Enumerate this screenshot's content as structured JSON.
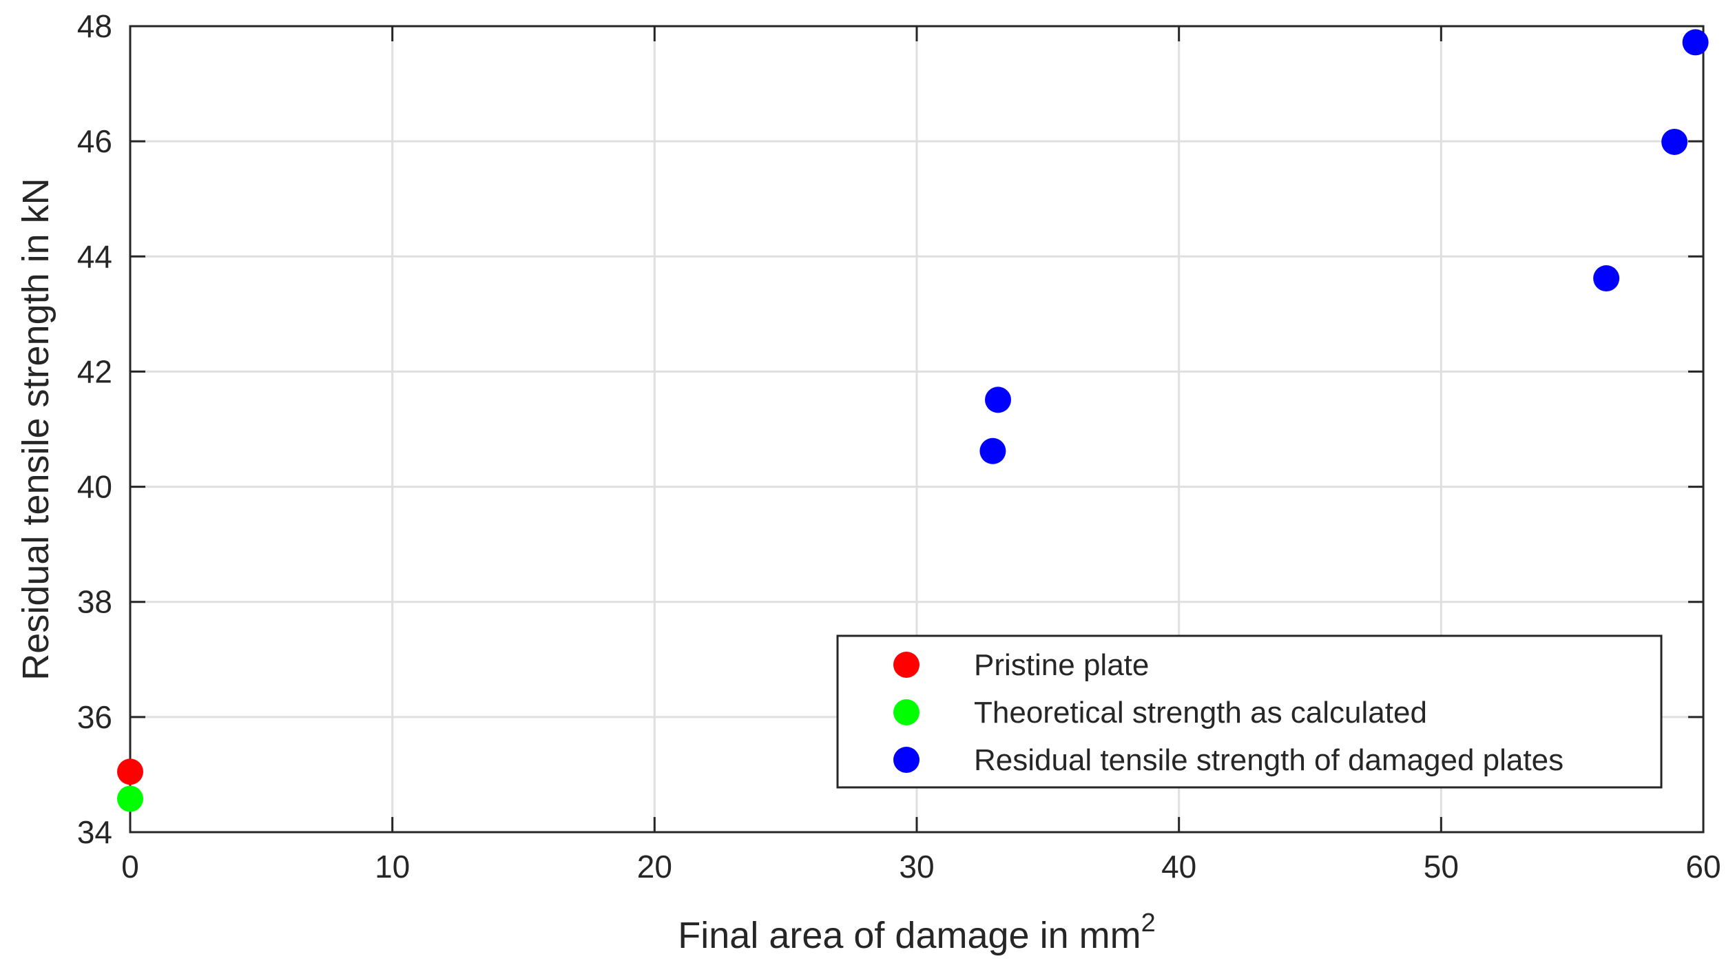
{
  "chart_data": {
    "type": "scatter",
    "title": "",
    "xlabel": "Final area of damage in mm",
    "xlabel_superscript": "2",
    "ylabel": "Residual tensile strength in kN",
    "xlim": [
      0,
      60
    ],
    "ylim": [
      34,
      48
    ],
    "xticks": [
      0,
      10,
      20,
      30,
      40,
      50,
      60
    ],
    "yticks": [
      34,
      36,
      38,
      40,
      42,
      44,
      46,
      48
    ],
    "xtick_labels": [
      "0",
      "10",
      "20",
      "30",
      "40",
      "50",
      "60"
    ],
    "ytick_labels": [
      "34",
      "36",
      "38",
      "40",
      "42",
      "44",
      "46",
      "48"
    ],
    "grid": true,
    "legend_position": "bottom-right",
    "series": [
      {
        "name": "Pristine plate",
        "color": "#ff0000",
        "points": [
          {
            "x": 0,
            "y": 35.05
          }
        ]
      },
      {
        "name": "Theoretical strength as calculated",
        "color": "#00ff00",
        "points": [
          {
            "x": 0,
            "y": 34.58
          }
        ]
      },
      {
        "name": "Residual tensile strength of damaged plates",
        "color": "#0000ff",
        "points": [
          {
            "x": 32.9,
            "y": 40.62
          },
          {
            "x": 33.1,
            "y": 41.51
          },
          {
            "x": 56.3,
            "y": 43.62
          },
          {
            "x": 58.9,
            "y": 45.99
          },
          {
            "x": 59.7,
            "y": 47.72
          }
        ]
      }
    ]
  }
}
